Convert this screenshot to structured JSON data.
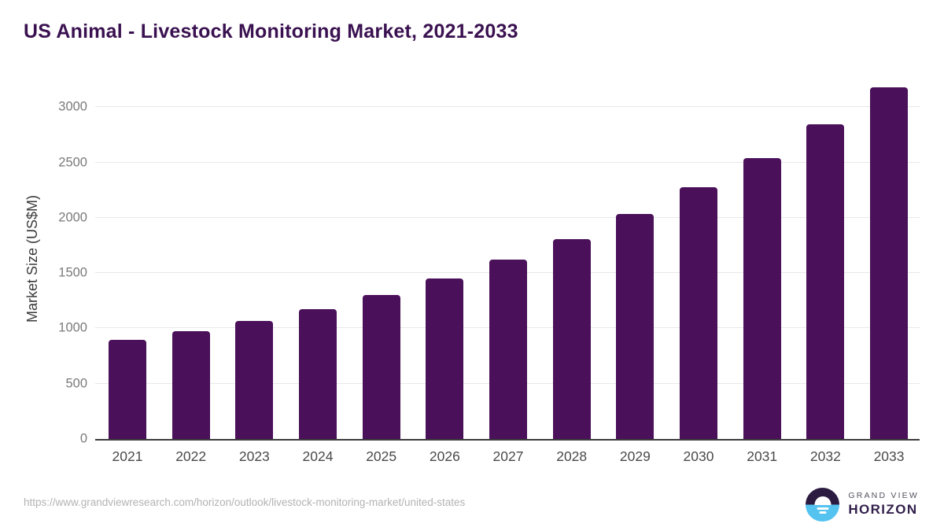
{
  "header": {
    "title": "US Animal - Livestock Monitoring Market, 2021-2033"
  },
  "chart_data": {
    "type": "bar",
    "title": "US Animal - Livestock Monitoring Market, 2021-2033",
    "categories": [
      "2021",
      "2022",
      "2023",
      "2024",
      "2025",
      "2026",
      "2027",
      "2028",
      "2029",
      "2030",
      "2031",
      "2032",
      "2033"
    ],
    "values": [
      900,
      975,
      1070,
      1175,
      1300,
      1450,
      1625,
      1805,
      2035,
      2275,
      2540,
      2845,
      3180
    ],
    "xlabel": "",
    "ylabel": "Market Size (US$M)",
    "ylim": [
      0,
      3000
    ],
    "yticks": [
      0,
      500,
      1000,
      1500,
      2000,
      2500,
      3000
    ],
    "grid": true,
    "legend": false,
    "bar_color": "#4a1059"
  },
  "footer": {
    "source_url": "https://www.grandviewresearch.com/horizon/outlook/livestock-monitoring-market/united-states",
    "logo": {
      "line1": "GRAND VIEW",
      "line2": "HORIZON"
    }
  },
  "colors": {
    "title": "#3a1150",
    "bar": "#4a1059",
    "gridline": "#e8e8e8",
    "axis_line": "#3c3c3c",
    "tick_label": "#7a7a7a",
    "x_label": "#4a4a4a",
    "source_url": "#b3b3b3",
    "logo_dark": "#2b1b41",
    "logo_blue": "#55c3f0"
  }
}
